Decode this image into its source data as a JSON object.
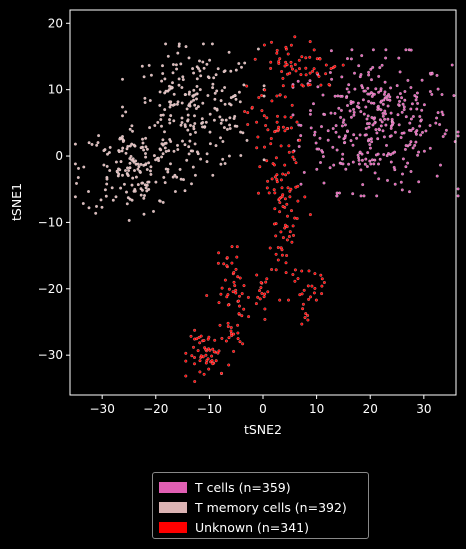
{
  "chart_data": {
    "type": "scatter",
    "xlabel": "tSNE2",
    "ylabel": "tSNE1",
    "xlim": [
      -36,
      36
    ],
    "ylim": [
      -36,
      22
    ],
    "xticks": [
      -30,
      -20,
      -10,
      0,
      10,
      20,
      30
    ],
    "yticks": [
      -30,
      -20,
      -10,
      0,
      10,
      20
    ],
    "background": "#000000",
    "legend_position": "below",
    "series": [
      {
        "name": "T cells (n=359)",
        "color": "#e05fb3",
        "count": 359,
        "clusters": [
          {
            "cx": 21,
            "cy": 5,
            "sx": 7,
            "sy": 5,
            "n": 359
          }
        ]
      },
      {
        "name": "T memory cells (n=392)",
        "color": "#dcb4b4",
        "count": 392,
        "clusters": [
          {
            "cx": -13,
            "cy": 7,
            "sx": 6,
            "sy": 4.5,
            "n": 230
          },
          {
            "cx": -24,
            "cy": -2,
            "sx": 5,
            "sy": 3.5,
            "n": 162
          }
        ]
      },
      {
        "name": "Unknown (n=341)",
        "color": "#ff0000",
        "count": 341,
        "clusters": [
          {
            "cx": 4,
            "cy": 14,
            "sx": 3,
            "sy": 1.8,
            "n": 40
          },
          {
            "cx": 11,
            "cy": 12.5,
            "sx": 1.8,
            "sy": 1.2,
            "n": 16
          },
          {
            "cx": 2,
            "cy": 5,
            "sx": 2.5,
            "sy": 4,
            "n": 55
          },
          {
            "cx": 4,
            "cy": -6,
            "sx": 2.2,
            "sy": 3,
            "n": 45
          },
          {
            "cx": 4,
            "cy": -14,
            "sx": 1.5,
            "sy": 3.5,
            "n": 35
          },
          {
            "cx": -6,
            "cy": -17,
            "sx": 1.2,
            "sy": 2,
            "n": 22
          },
          {
            "cx": -5,
            "cy": -22,
            "sx": 2.5,
            "sy": 2.5,
            "n": 28
          },
          {
            "cx": 0,
            "cy": -20,
            "sx": 1,
            "sy": 1.5,
            "n": 10
          },
          {
            "cx": 10.5,
            "cy": -19.5,
            "sx": 1.2,
            "sy": 1,
            "n": 12
          },
          {
            "cx": 7.5,
            "cy": -21.5,
            "sx": 0.8,
            "sy": 0.8,
            "n": 6
          },
          {
            "cx": 7.5,
            "cy": -24,
            "sx": 0.5,
            "sy": 0.6,
            "n": 6
          },
          {
            "cx": -10,
            "cy": -30,
            "sx": 2,
            "sy": 1.8,
            "n": 52
          },
          {
            "cx": -6,
            "cy": -27,
            "sx": 1,
            "sy": 1.2,
            "n": 14
          }
        ]
      }
    ]
  }
}
